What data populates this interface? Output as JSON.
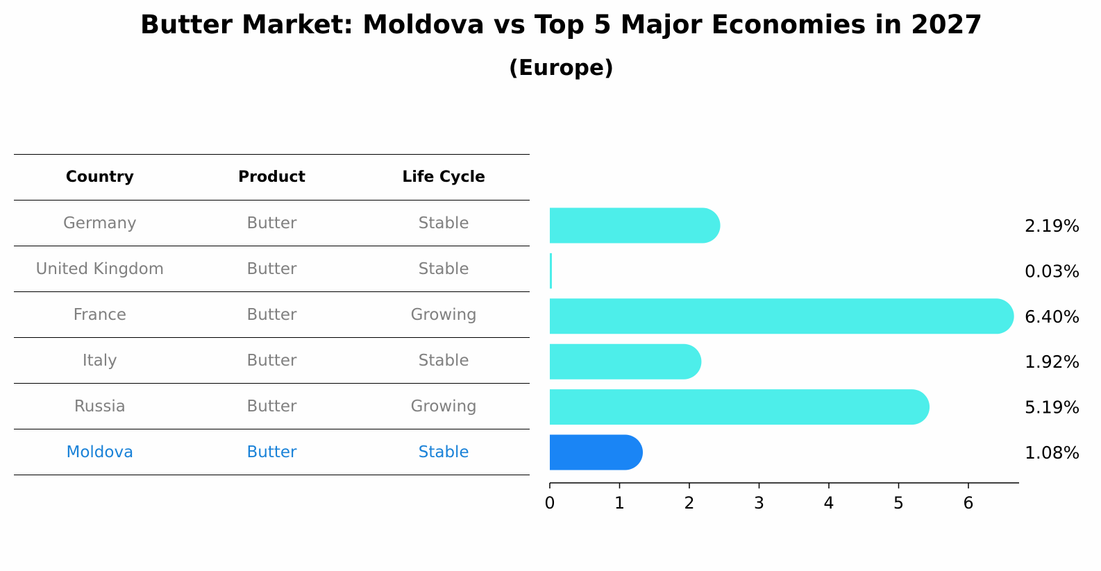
{
  "title": "Butter Market: Moldova vs Top 5 Major Economies in 2027",
  "subtitle": "(Europe)",
  "colors": {
    "bar": "#4deeea",
    "highlight": "#1a85f5",
    "highlight_text": "#1a82d8"
  },
  "table": {
    "headers": [
      "Country",
      "Product",
      "Life Cycle"
    ],
    "rows": [
      [
        "Germany",
        "Butter",
        "Stable"
      ],
      [
        "United Kingdom",
        "Butter",
        "Stable"
      ],
      [
        "France",
        "Butter",
        "Growing"
      ],
      [
        "Italy",
        "Butter",
        "Stable"
      ],
      [
        "Russia",
        "Butter",
        "Growing"
      ],
      [
        "Moldova",
        "Butter",
        "Stable"
      ]
    ]
  },
  "chart_data": {
    "type": "bar",
    "orientation": "horizontal",
    "categories": [
      "Germany",
      "United Kingdom",
      "France",
      "Italy",
      "Russia",
      "Moldova"
    ],
    "values": [
      2.19,
      0.03,
      6.4,
      1.92,
      5.19,
      1.08
    ],
    "labels": [
      "2.19%",
      "0.03%",
      "6.40%",
      "1.92%",
      "5.19%",
      "1.08%"
    ],
    "highlight": "Moldova",
    "xticks": [
      0,
      1,
      2,
      3,
      4,
      5,
      6
    ],
    "xlim": [
      0,
      6.75
    ]
  }
}
